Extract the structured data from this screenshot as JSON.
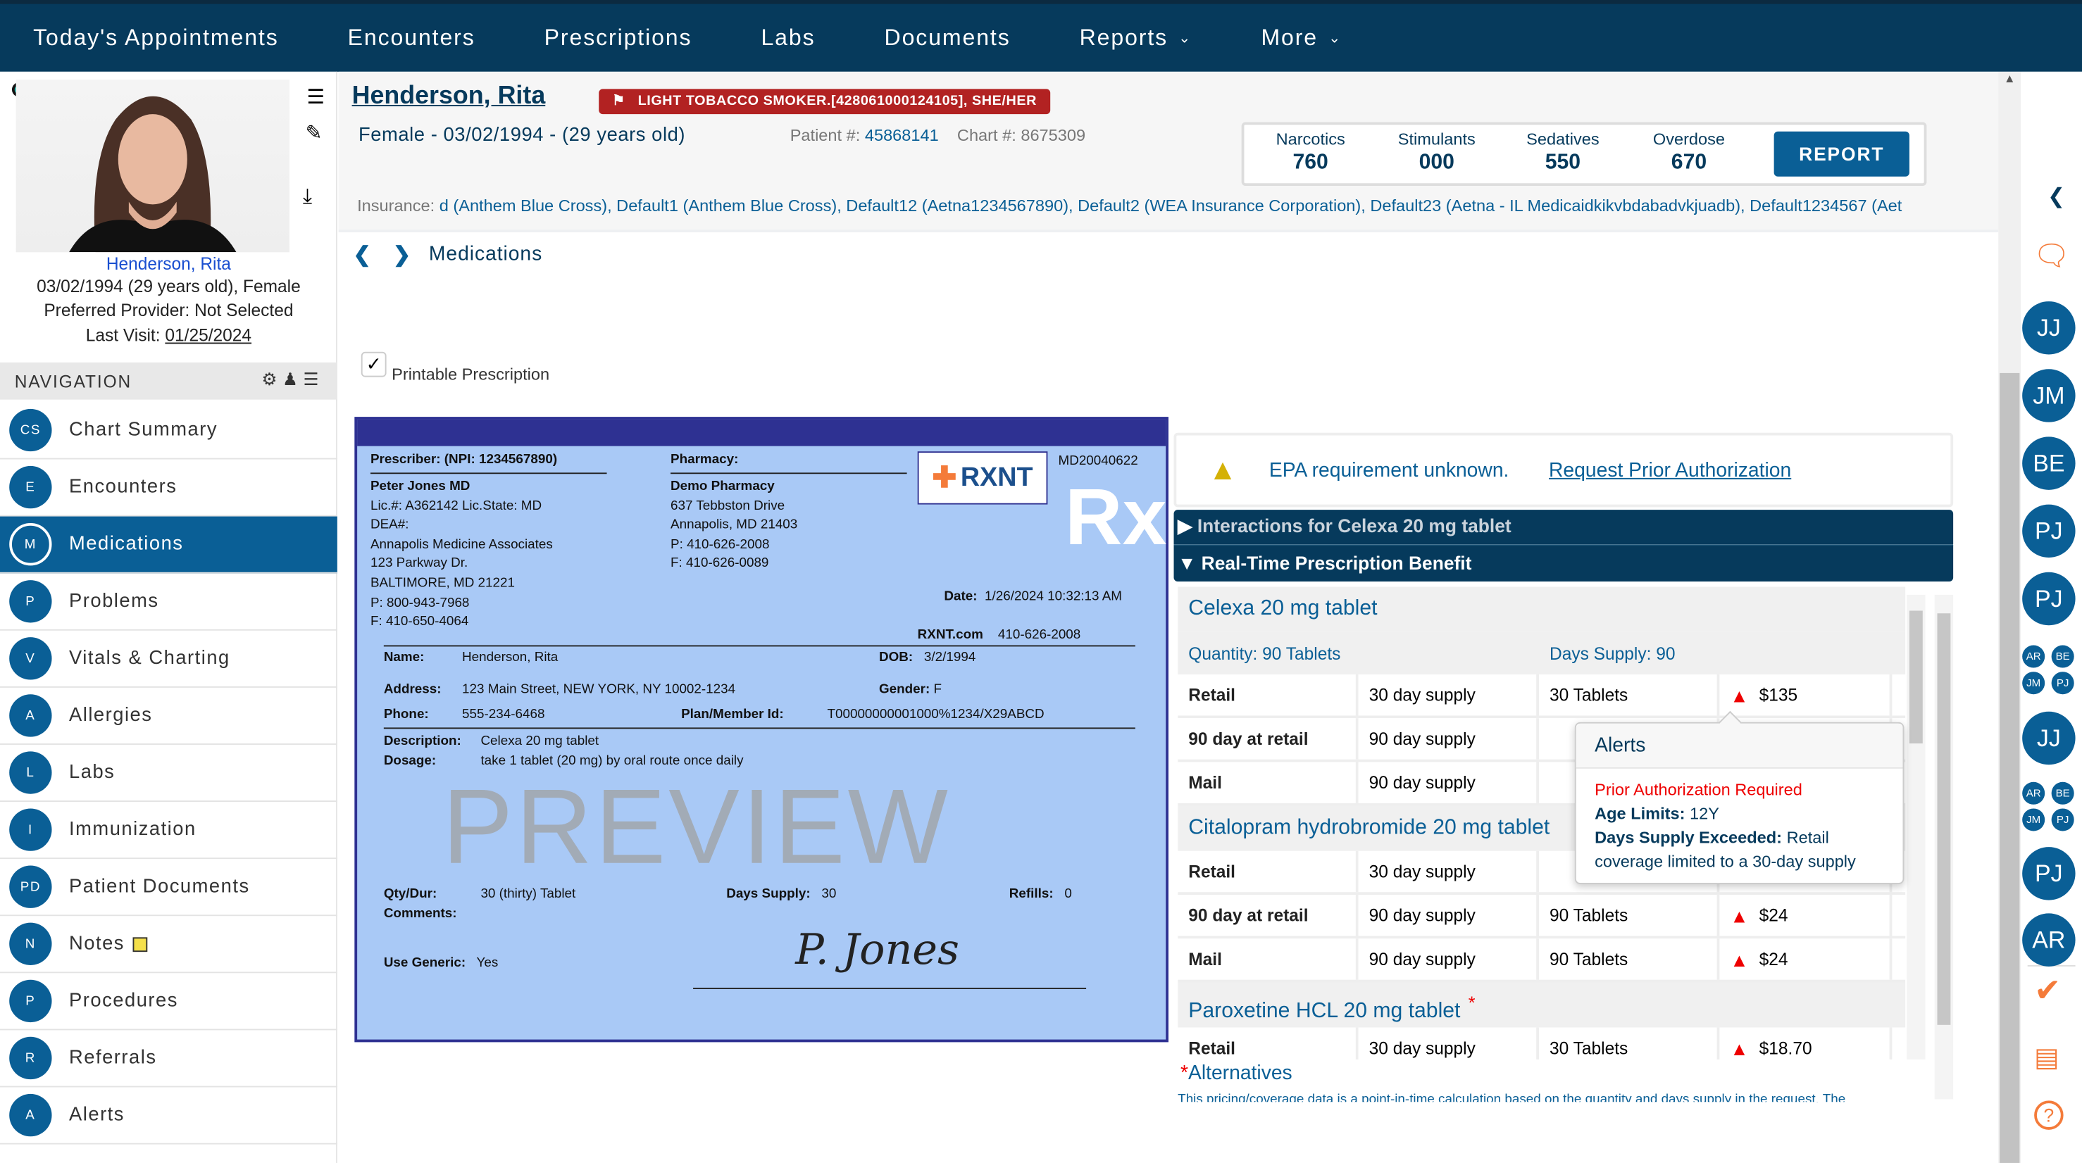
{
  "topnav": {
    "items": [
      "Today's Appointments",
      "Encounters",
      "Prescriptions",
      "Labs",
      "Documents",
      "Reports",
      "More"
    ]
  },
  "patient_card": {
    "name": "Henderson, Rita",
    "dob_line": "03/02/1994 (29 years old), Female",
    "provider": "Preferred Provider: Not Selected",
    "last_visit_label": "Last Visit:",
    "last_visit": "01/25/2024"
  },
  "navigation": {
    "title": "NAVIGATION",
    "items": [
      {
        "abbr": "CS",
        "label": "Chart Summary"
      },
      {
        "abbr": "E",
        "label": "Encounters"
      },
      {
        "abbr": "M",
        "label": "Medications",
        "active": true
      },
      {
        "abbr": "P",
        "label": "Problems"
      },
      {
        "abbr": "V",
        "label": "Vitals & Charting"
      },
      {
        "abbr": "A",
        "label": "Allergies"
      },
      {
        "abbr": "L",
        "label": "Labs"
      },
      {
        "abbr": "I",
        "label": "Immunization"
      },
      {
        "abbr": "PD",
        "label": "Patient Documents"
      },
      {
        "abbr": "N",
        "label": "Notes"
      },
      {
        "abbr": "P",
        "label": "Procedures"
      },
      {
        "abbr": "R",
        "label": "Referrals"
      },
      {
        "abbr": "A",
        "label": "Alerts"
      }
    ]
  },
  "header": {
    "name": "Henderson, Rita",
    "flag": "LIGHT TOBACCO SMOKER.[428061000124105], SHE/HER",
    "demographics": "Female - 03/02/1994 - (29 years old)",
    "patient_label": "Patient #:",
    "patient_no": "45868141",
    "chart_label": "Chart #:",
    "chart_no": "8675309",
    "scores": [
      {
        "label": "Narcotics",
        "value": "760"
      },
      {
        "label": "Stimulants",
        "value": "000"
      },
      {
        "label": "Sedatives",
        "value": "550"
      },
      {
        "label": "Overdose",
        "value": "670"
      }
    ],
    "report_button": "REPORT",
    "insurance_label": "Insurance:",
    "insurance": "d (Anthem Blue Cross), Default1 (Anthem Blue Cross), Default12 (Aetna1234567890), Default2 (WEA Insurance Corporation), Default23 (Aetna - IL Medicaidkikvbdabadvkjuadb), Default1234567 (Aet"
  },
  "breadcrumb": {
    "title": "Medications"
  },
  "printable": {
    "label": "Printable Prescription",
    "checked": true
  },
  "rx": {
    "prescriber_h": "Prescriber: (NPI: 1234567890)",
    "prescriber": [
      "Peter Jones MD",
      "Lic.#: A362142 Lic.State: MD",
      "DEA#:",
      "Annapolis Medicine Associates",
      "123 Parkway Dr.",
      "BALTIMORE,  MD 21221",
      "P: 800-943-7968",
      "F: 410-650-4064"
    ],
    "pharmacy_h": "Pharmacy:",
    "pharmacy_name": "Demo Pharmacy",
    "pharmacy": [
      "637 Tebbston Drive",
      "Annapolis,  MD 21403",
      "P: 410-626-2008",
      "F: 410-626-0089"
    ],
    "logo": "RXNT",
    "code": "MD20040622",
    "rx_symbol": "Rx",
    "date_label": "Date:",
    "date": "1/26/2024 10:32:13 AM",
    "site": "RXNT.com",
    "site_phone": "410-626-2008",
    "name_label": "Name:",
    "name": "Henderson, Rita",
    "dob_label": "DOB:",
    "dob": "3/2/1994",
    "address_label": "Address:",
    "address": "123 Main Street, NEW YORK, NY 10002-1234",
    "gender_label": "Gender:",
    "gender": "F",
    "phone_label": "Phone:",
    "phone": "555-234-6468",
    "plan_label": "Plan/Member Id:",
    "plan": "T00000000001000%1234/X29ABCD",
    "desc_label": "Description:",
    "desc": "Celexa 20 mg tablet",
    "dosage_label": "Dosage:",
    "dosage": "take 1 tablet (20 mg) by oral route once daily",
    "watermark": "PREVIEW",
    "qty_label": "Qty/Dur:",
    "qty": "30 (thirty) Tablet",
    "days_label": "Days Supply:",
    "days": "30",
    "refills_label": "Refills:",
    "refills": "0",
    "comments_label": "Comments:",
    "generic_label": "Use Generic:",
    "generic": "Yes",
    "signature": "P. Jones"
  },
  "epa": {
    "text": "EPA requirement unknown.",
    "link": "Request Prior Authorization"
  },
  "sections": {
    "interactions": "Interactions for Celexa 20 mg tablet",
    "rtpb": "Real-Time Prescription Benefit"
  },
  "rtpb": {
    "drugs": [
      {
        "name": "Celexa 20 mg tablet",
        "quantity": "Quantity: 90 Tablets",
        "days": "Days Supply: 90",
        "rows": [
          [
            "Retail",
            "30 day supply",
            "30 Tablets",
            "$135"
          ],
          [
            "90 day at retail",
            "90 day supply",
            "",
            ""
          ],
          [
            "Mail",
            "90 day supply",
            "",
            ""
          ]
        ]
      },
      {
        "name": "Citalopram hydrobromide 20 mg tablet",
        "rows": [
          [
            "Retail",
            "30 day supply",
            "",
            ""
          ],
          [
            "90 day at retail",
            "90 day supply",
            "90 Tablets",
            "$24"
          ],
          [
            "Mail",
            "90 day supply",
            "90 Tablets",
            "$24"
          ]
        ]
      },
      {
        "name": "Paroxetine HCL 20 mg tablet",
        "star": "*",
        "rows": [
          [
            "Retail",
            "30 day supply",
            "30 Tablets",
            "$18.70"
          ]
        ]
      }
    ],
    "alternatives": "Alternatives",
    "footnote": "This pricing/coverage data is a point-in-time calculation based on the quantity and days supply in the request. The"
  },
  "alerts_popup": {
    "title": "Alerts",
    "prior_auth": "Prior Authorization Required",
    "age_label": "Age Limits:",
    "age": "12Y",
    "days_label": "Days Supply Exceeded:",
    "days_text": "Retail coverage limited to a 30-day supply"
  },
  "right_rail": {
    "avatars": [
      "JJ",
      "JM",
      "BE",
      "PJ",
      "PJ",
      "JJ",
      "PJ",
      "AR"
    ],
    "mini_groups": [
      [
        "AR",
        "BE",
        "JM",
        "PJ"
      ],
      [
        "AR",
        "BE",
        "JM",
        "PJ"
      ]
    ]
  },
  "colors": {
    "nav": "#063a5c",
    "accent": "#0a5f96",
    "flag": "#b22222",
    "rx_bg": "#a9c9f6",
    "rx_band": "#2e3192",
    "alert": "#e00000",
    "orange": "#f47b3a"
  }
}
